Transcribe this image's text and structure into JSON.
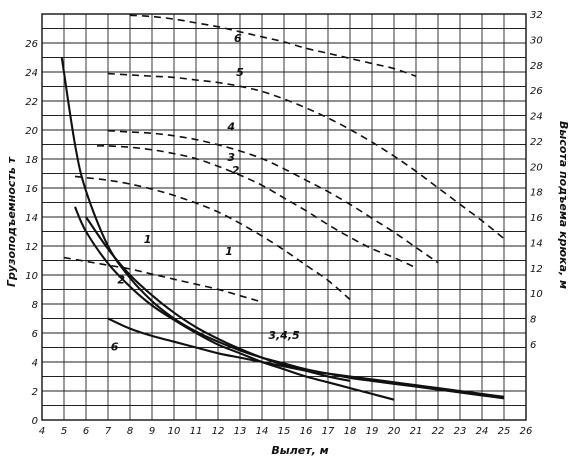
{
  "chart_data": {
    "type": "line",
    "title": "",
    "xlabel": "Вылет, м",
    "ylabel_left": "Грузоподъемность т",
    "ylabel_right": "Высота подъема крюка, м",
    "xlim": [
      4,
      26
    ],
    "ylim_left": [
      0,
      28
    ],
    "ylim_right": [
      0,
      32
    ],
    "x_ticks": [
      "4",
      "5",
      "6",
      "7",
      "8",
      "9",
      "10",
      "11",
      "12",
      "13",
      "14",
      "15",
      "16",
      "17",
      "18",
      "19",
      "20",
      "21",
      "22",
      "23",
      "24",
      "25",
      "26"
    ],
    "y_ticks_left": [
      "0",
      "2",
      "4",
      "6",
      "8",
      "10",
      "12",
      "14",
      "16",
      "18",
      "20",
      "22",
      "24",
      "26"
    ],
    "y_ticks_right": [
      "6",
      "8",
      "10",
      "12",
      "14",
      "16",
      "18",
      "20",
      "22",
      "24",
      "26",
      "28",
      "30",
      "32"
    ],
    "grid": true,
    "series": [
      {
        "name": "1",
        "style": "solid",
        "axis": "left",
        "label_at": [
          8.8,
          12.2
        ],
        "x": [
          6.0,
          7,
          8,
          9,
          10,
          11,
          12,
          13,
          14,
          15,
          16,
          17,
          18
        ],
        "y": [
          14.0,
          11.8,
          10.0,
          8.6,
          7.4,
          6.4,
          5.6,
          4.9,
          4.3,
          3.8,
          3.4,
          3.0,
          2.7
        ]
      },
      {
        "name": "2",
        "style": "solid",
        "axis": "left",
        "label_at": [
          7.6,
          9.4
        ],
        "x": [
          5.5,
          6,
          7,
          8,
          9,
          10,
          11,
          12,
          13,
          14,
          15,
          16,
          17,
          18,
          19,
          20
        ],
        "y": [
          14.7,
          13.0,
          10.8,
          9.2,
          7.9,
          6.9,
          6.0,
          5.2,
          4.6,
          4.0,
          3.5,
          3.0,
          2.6,
          2.2,
          1.8,
          1.4
        ]
      },
      {
        "name": "3,4,5",
        "style": "solid",
        "axis": "left",
        "label_at": [
          15.0,
          5.6
        ],
        "x": [
          4.9,
          5.5,
          6,
          7,
          8,
          9,
          10,
          11,
          12,
          13,
          14,
          15,
          16,
          17,
          18,
          19,
          20,
          21,
          22,
          23,
          24,
          25
        ],
        "y": [
          25.0,
          19.0,
          15.8,
          12.0,
          9.8,
          8.2,
          7.0,
          6.1,
          5.4,
          4.8,
          4.3,
          3.9,
          3.5,
          3.2,
          2.9,
          2.7,
          2.5,
          2.3,
          2.1,
          1.9,
          1.7,
          1.5
        ]
      },
      {
        "name": "6",
        "style": "solid",
        "axis": "left",
        "label_at": [
          7.3,
          4.8
        ],
        "x": [
          7.0,
          8,
          9,
          10,
          11,
          12,
          13,
          14,
          15,
          16,
          17,
          18,
          19,
          20,
          21,
          22,
          23,
          24,
          25
        ],
        "y": [
          7.0,
          6.3,
          5.8,
          5.4,
          5.0,
          4.6,
          4.3,
          4.0,
          3.7,
          3.4,
          3.2,
          3.0,
          2.8,
          2.6,
          2.4,
          2.2,
          2.0,
          1.8,
          1.6
        ]
      },
      {
        "name": "1",
        "style": "dashed",
        "axis": "right",
        "label_at": [
          12.5,
          13.0
        ],
        "x": [
          5,
          6,
          7,
          8,
          9,
          10,
          11,
          12,
          13,
          14
        ],
        "y": [
          12.8,
          12.5,
          12.2,
          11.9,
          11.5,
          11.1,
          10.7,
          10.3,
          9.8,
          9.3
        ]
      },
      {
        "name": "2",
        "style": "dashed",
        "axis": "right",
        "label_at": [
          12.8,
          19.4
        ],
        "x": [
          5.5,
          6,
          7,
          8,
          9,
          10,
          11,
          12,
          13,
          14,
          15,
          16,
          17,
          18
        ],
        "y": [
          19.2,
          19.1,
          18.9,
          18.6,
          18.2,
          17.7,
          17.1,
          16.4,
          15.5,
          14.5,
          13.4,
          12.2,
          11.0,
          9.5
        ]
      },
      {
        "name": "3",
        "style": "dashed",
        "axis": "right",
        "label_at": [
          12.6,
          20.4
        ],
        "x": [
          6.5,
          7,
          8,
          9,
          10,
          11,
          12,
          13,
          14,
          15,
          16,
          17,
          18,
          19,
          20,
          21
        ],
        "y": [
          21.6,
          21.6,
          21.5,
          21.3,
          21.0,
          20.6,
          20.0,
          19.3,
          18.5,
          17.5,
          16.5,
          15.4,
          14.4,
          13.5,
          12.8,
          12.0
        ]
      },
      {
        "name": "4",
        "style": "dashed",
        "axis": "right",
        "label_at": [
          12.6,
          22.8
        ],
        "x": [
          7,
          8,
          9,
          10,
          11,
          12,
          13,
          14,
          15,
          16,
          17,
          18,
          19,
          20,
          21,
          22
        ],
        "y": [
          22.8,
          22.7,
          22.6,
          22.4,
          22.1,
          21.7,
          21.2,
          20.6,
          19.8,
          18.9,
          18.0,
          17.0,
          15.9,
          14.8,
          13.6,
          12.4
        ]
      },
      {
        "name": "5",
        "style": "dashed",
        "axis": "right",
        "label_at": [
          13.0,
          27.1
        ],
        "x": [
          7,
          8,
          9,
          10,
          11,
          12,
          13,
          14,
          15,
          16,
          17,
          18,
          19,
          20,
          21,
          22,
          23,
          24,
          25
        ],
        "y": [
          27.3,
          27.2,
          27.1,
          27.0,
          26.8,
          26.6,
          26.3,
          25.9,
          25.3,
          24.6,
          23.8,
          22.9,
          21.9,
          20.8,
          19.6,
          18.3,
          17.0,
          15.7,
          14.3
        ]
      },
      {
        "name": "6",
        "style": "dashed",
        "axis": "right",
        "label_at": [
          12.9,
          29.8
        ],
        "x": [
          8,
          9,
          10,
          11,
          12,
          13,
          14,
          15,
          16,
          17,
          18,
          19,
          20,
          21
        ],
        "y": [
          31.9,
          31.8,
          31.6,
          31.3,
          31.0,
          30.6,
          30.2,
          29.8,
          29.3,
          28.9,
          28.5,
          28.1,
          27.7,
          27.1
        ]
      }
    ]
  }
}
